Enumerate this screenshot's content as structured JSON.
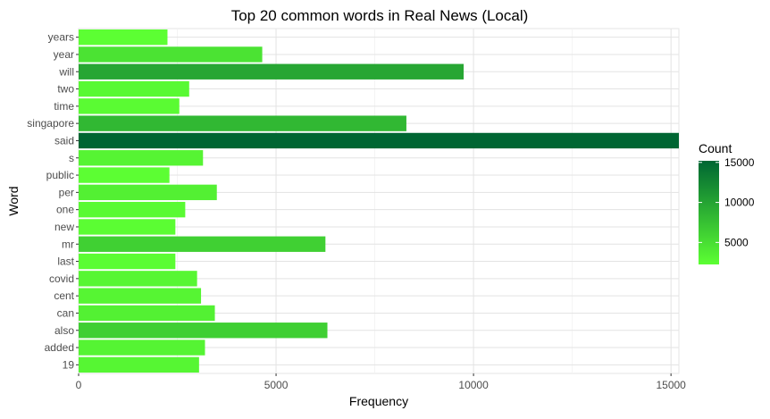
{
  "chart_data": {
    "type": "bar",
    "orientation": "horizontal",
    "title": "Top 20 common words in Real News (Local)",
    "xlabel": "Frequency",
    "ylabel": "Word",
    "xlim": [
      0,
      15200
    ],
    "x_ticks": [
      0,
      5000,
      10000,
      15000
    ],
    "x_tick_labels": [
      "0",
      "5000",
      "10000",
      "15000"
    ],
    "grid": true,
    "categories": [
      "years",
      "year",
      "will",
      "two",
      "time",
      "singapore",
      "said",
      "s",
      "public",
      "per",
      "one",
      "new",
      "mr",
      "last",
      "covid",
      "cent",
      "can",
      "also",
      "added",
      "19"
    ],
    "values": [
      2250,
      4650,
      9750,
      2800,
      2550,
      8300,
      15200,
      3150,
      2300,
      3500,
      2700,
      2450,
      6250,
      2450,
      3000,
      3100,
      3450,
      6300,
      3200,
      3050
    ],
    "legend": {
      "title": "Count",
      "position": "right",
      "ticks": [
        5000,
        10000,
        15000
      ],
      "tick_labels": [
        "5000",
        "10000",
        "15000"
      ],
      "min": 2250,
      "max": 15200,
      "color_low": "#5cff33",
      "color_high": "#006633"
    }
  }
}
